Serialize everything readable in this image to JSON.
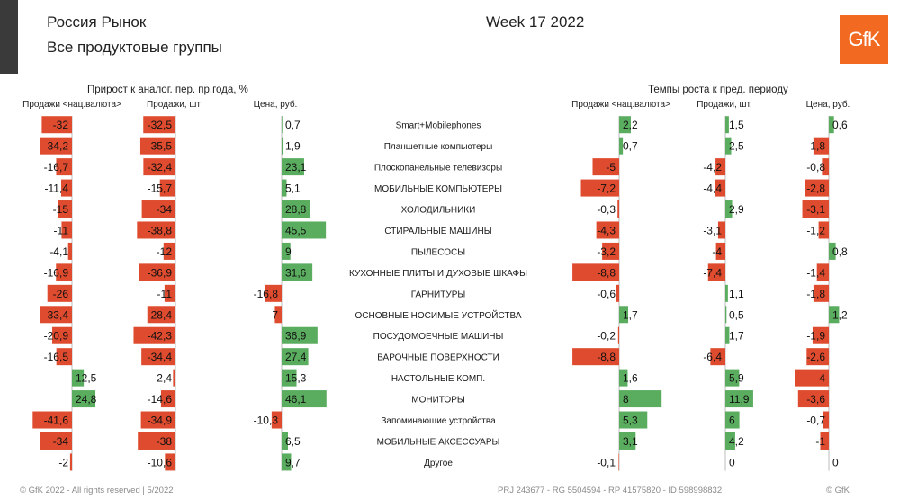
{
  "header": {
    "title": "Россия Рынок",
    "subtitle": "Все продуктовые группы",
    "week": "Week 17 2022",
    "logo_text": "GfK"
  },
  "colors": {
    "negative": "#de4b2e",
    "positive": "#5aac5f",
    "logo": "#f26a21"
  },
  "footer": {
    "left": "© GfK 2022 - All rights reserved | 5/2022",
    "center": "PRJ 243677 - RG 5504594 - RP 41575820 - ID 598998832",
    "right": "© GfK"
  },
  "chart_data": {
    "type": "bar",
    "orientation": "horizontal",
    "grid": false,
    "groups": [
      {
        "title": "Прирост к аналог. пер. пр.года, %"
      },
      {
        "title": "Темпы роста к пред. периоду"
      }
    ],
    "categories": [
      "Smart+Mobilephones",
      "Планшетные компьютеры",
      "Плоскопанельные телевизоры",
      "МОБИЛЬНЫЕ КОМПЬЮТЕРЫ",
      "ХОЛОДИЛЬНИКИ",
      "СТИРАЛЬНЫЕ МАШИНЫ",
      "ПЫЛЕСОСЫ",
      "КУХОННЫЕ ПЛИТЫ И ДУХОВЫЕ ШКАФЫ",
      "ГАРНИТУРЫ",
      "ОСНОВНЫЕ НОСИМЫЕ УСТРОЙСТВА",
      "ПОСУДОМОЕЧНЫЕ МАШИНЫ",
      "ВАРОЧНЫЕ ПОВЕРХНОСТИ",
      "НАСТОЛЬНЫЕ КОМП.",
      "МОНИТОРЫ",
      "Запоминающие устройства",
      "МОБИЛЬНЫЕ АКСЕССУАРЫ",
      "Другое"
    ],
    "series": [
      {
        "name": "Продажи <нац.валюта>",
        "group": 0,
        "values": [
          -32,
          -34.2,
          -16.7,
          -11.4,
          -15,
          -11,
          -4.1,
          -16.9,
          -26,
          -33.4,
          -20.9,
          -16.5,
          12.5,
          24.8,
          -41.6,
          -34,
          -2
        ],
        "labels": [
          "-32",
          "-34,2",
          "-16,7",
          "-11,4",
          "-15",
          "-11",
          "-4,1",
          "-16,9",
          "-26",
          "-33,4",
          "-20,9",
          "-16,5",
          "12,5",
          "24,8",
          "-41,6",
          "-34",
          "-2"
        ]
      },
      {
        "name": "Продажи, шт",
        "group": 0,
        "values": [
          -32.5,
          -35.5,
          -32.4,
          -15.7,
          -34,
          -38.8,
          -12,
          -36.9,
          -11,
          -28.4,
          -42.3,
          -34.4,
          -2.4,
          -14.6,
          -34.9,
          -38,
          -10.6
        ],
        "labels": [
          "-32,5",
          "-35,5",
          "-32,4",
          "-15,7",
          "-34",
          "-38,8",
          "-12",
          "-36,9",
          "-11",
          "-28,4",
          "-42,3",
          "-34,4",
          "-2,4",
          "-14,6",
          "-34,9",
          "-38",
          "-10,6"
        ]
      },
      {
        "name": "Цена, руб.",
        "group": 0,
        "values": [
          0.7,
          1.9,
          23.1,
          5.1,
          28.8,
          45.5,
          9,
          31.6,
          -16.8,
          -7,
          36.9,
          27.4,
          15.3,
          46.1,
          -10.3,
          6.5,
          9.7
        ],
        "labels": [
          "0,7",
          "1,9",
          "23,1",
          "5,1",
          "28,8",
          "45,5",
          "9",
          "31,6",
          "-16,8",
          "-7",
          "36,9",
          "27,4",
          "15,3",
          "46,1",
          "-10,3",
          "6,5",
          "9,7"
        ]
      },
      {
        "name": "Продажи <нац.валюта>",
        "group": 1,
        "values": [
          2.2,
          0.7,
          -5,
          -7.2,
          -0.3,
          -4.3,
          -3.2,
          -8.8,
          -0.6,
          1.7,
          -0.2,
          -8.8,
          1.6,
          8,
          5.3,
          3.1,
          -0.1
        ],
        "labels": [
          "2,2",
          "0,7",
          "-5",
          "-7,2",
          "-0,3",
          "-4,3",
          "-3,2",
          "-8,8",
          "-0,6",
          "1,7",
          "-0,2",
          "-8,8",
          "1,6",
          "8",
          "5,3",
          "3,1",
          "-0,1"
        ]
      },
      {
        "name": "Продажи, шт.",
        "group": 1,
        "values": [
          1.5,
          2.5,
          -4.2,
          -4.4,
          2.9,
          -3.1,
          -4,
          -7.4,
          1.1,
          0.5,
          1.7,
          -6.4,
          5.9,
          11.9,
          6,
          4.2,
          0
        ],
        "labels": [
          "1,5",
          "2,5",
          "-4,2",
          "-4,4",
          "2,9",
          "-3,1",
          "-4",
          "-7,4",
          "1,1",
          "0,5",
          "1,7",
          "-6,4",
          "5,9",
          "11,9",
          "6",
          "4,2",
          "0"
        ]
      },
      {
        "name": "Цена, руб.",
        "group": 1,
        "values": [
          0.6,
          -1.8,
          -0.8,
          -2.8,
          -3.1,
          -1.2,
          0.8,
          -1.4,
          -1.8,
          1.2,
          -1.9,
          -2.6,
          -4,
          -3.6,
          -0.7,
          -1,
          0
        ],
        "labels": [
          "0,6",
          "-1,8",
          "-0,8",
          "-2,8",
          "-3,1",
          "-1,2",
          "0,8",
          "-1,4",
          "-1,8",
          "1,2",
          "-1,9",
          "-2,6",
          "-4",
          "-3,6",
          "-0,7",
          "-1",
          "0"
        ]
      }
    ]
  }
}
